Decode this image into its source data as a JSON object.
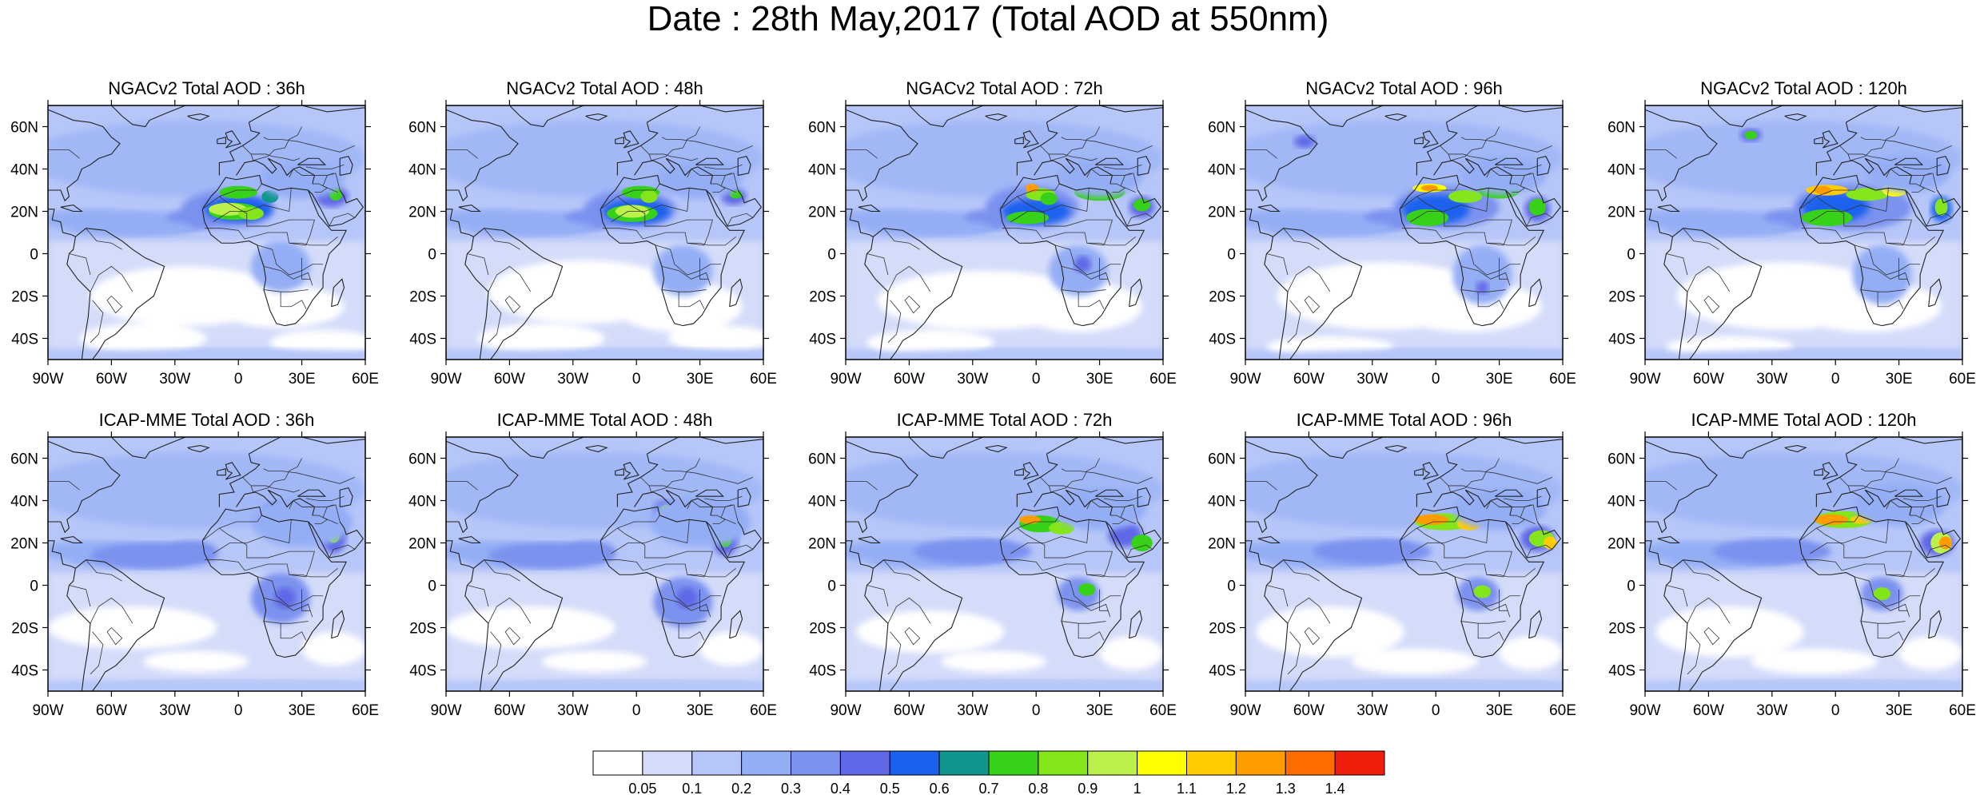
{
  "title": "Date : 28th May,2017 (Total AOD at 550nm)",
  "axes": {
    "lon_ticks": [
      "90W",
      "60W",
      "30W",
      "0",
      "30E",
      "60E"
    ],
    "lat_ticks": [
      "60N",
      "40N",
      "20N",
      "0",
      "20S",
      "40S"
    ],
    "lon_values": [
      -90,
      -60,
      -30,
      0,
      30,
      60
    ],
    "lat_values": [
      60,
      40,
      20,
      0,
      -20,
      -40
    ],
    "lon_range": [
      -90,
      60
    ],
    "lat_range": [
      -50,
      70
    ]
  },
  "panels": [
    {
      "title": "NGACv2 Total AOD : 36h",
      "lead_h": 36,
      "model": "NGACv2"
    },
    {
      "title": "NGACv2 Total AOD : 48h",
      "lead_h": 48,
      "model": "NGACv2"
    },
    {
      "title": "NGACv2 Total AOD : 72h",
      "lead_h": 72,
      "model": "NGACv2"
    },
    {
      "title": "NGACv2 Total AOD : 96h",
      "lead_h": 96,
      "model": "NGACv2"
    },
    {
      "title": "NGACv2 Total AOD : 120h",
      "lead_h": 120,
      "model": "NGACv2"
    },
    {
      "title": "ICAP-MME Total AOD : 36h",
      "lead_h": 36,
      "model": "ICAP-MME"
    },
    {
      "title": "ICAP-MME Total AOD : 48h",
      "lead_h": 48,
      "model": "ICAP-MME"
    },
    {
      "title": "ICAP-MME Total AOD : 72h",
      "lead_h": 72,
      "model": "ICAP-MME"
    },
    {
      "title": "ICAP-MME Total AOD : 96h",
      "lead_h": 96,
      "model": "ICAP-MME"
    },
    {
      "title": "ICAP-MME Total AOD : 120h",
      "lead_h": 120,
      "model": "ICAP-MME"
    }
  ],
  "colorbar": {
    "labels": [
      "0.05",
      "0.1",
      "0.2",
      "0.3",
      "0.4",
      "0.5",
      "0.6",
      "0.7",
      "0.8",
      "0.9",
      "1",
      "1.1",
      "1.2",
      "1.3",
      "1.4"
    ],
    "colors": [
      "#ffffff",
      "#d4dcfa",
      "#b6c6f8",
      "#94aef6",
      "#7c92ef",
      "#5f68e6",
      "#1a62ee",
      "#10968f",
      "#38d11a",
      "#84e61a",
      "#bcf04a",
      "#ffff00",
      "#ffcc00",
      "#ff9c00",
      "#ff6c00",
      "#f01c0c"
    ]
  }
}
